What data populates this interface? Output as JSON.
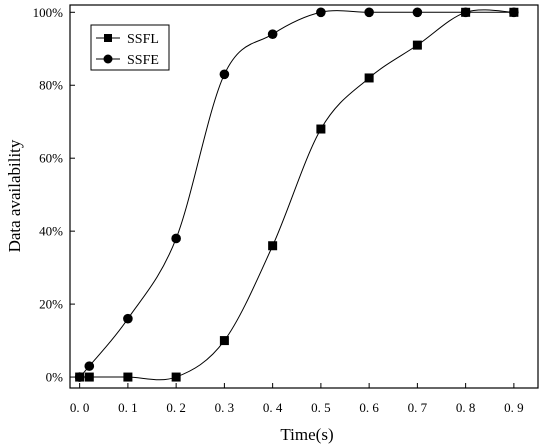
{
  "chart_data": {
    "type": "line",
    "xlabel": "Time(s)",
    "ylabel": "Data availability",
    "xlim": [
      -0.02,
      0.95
    ],
    "ylim": [
      -3,
      102
    ],
    "x_ticks": [
      0.0,
      0.1,
      0.2,
      0.3,
      0.4,
      0.5,
      0.6,
      0.7,
      0.8,
      0.9
    ],
    "x_tick_labels": [
      "0. 0",
      "0. 1",
      "0. 2",
      "0. 3",
      "0. 4",
      "0. 5",
      "0. 6",
      "0. 7",
      "0. 8",
      "0. 9"
    ],
    "y_ticks": [
      0,
      20,
      40,
      60,
      80,
      100
    ],
    "y_tick_labels": [
      "0%",
      "20%",
      "40%",
      "60%",
      "80%",
      "100%"
    ],
    "legend_position": "top-left",
    "grid": false,
    "series": [
      {
        "name": "SSFL",
        "marker": "square",
        "x": [
          0.0,
          0.02,
          0.1,
          0.2,
          0.3,
          0.4,
          0.5,
          0.6,
          0.7,
          0.8,
          0.9
        ],
        "y": [
          0,
          0,
          0,
          0,
          10,
          36,
          68,
          82,
          91,
          100,
          100
        ]
      },
      {
        "name": "SSFE",
        "marker": "circle",
        "x": [
          0.0,
          0.02,
          0.1,
          0.2,
          0.3,
          0.4,
          0.5,
          0.6,
          0.7,
          0.8,
          0.9
        ],
        "y": [
          0,
          3,
          16,
          38,
          83,
          94,
          100,
          100,
          100,
          100,
          100
        ]
      }
    ]
  }
}
